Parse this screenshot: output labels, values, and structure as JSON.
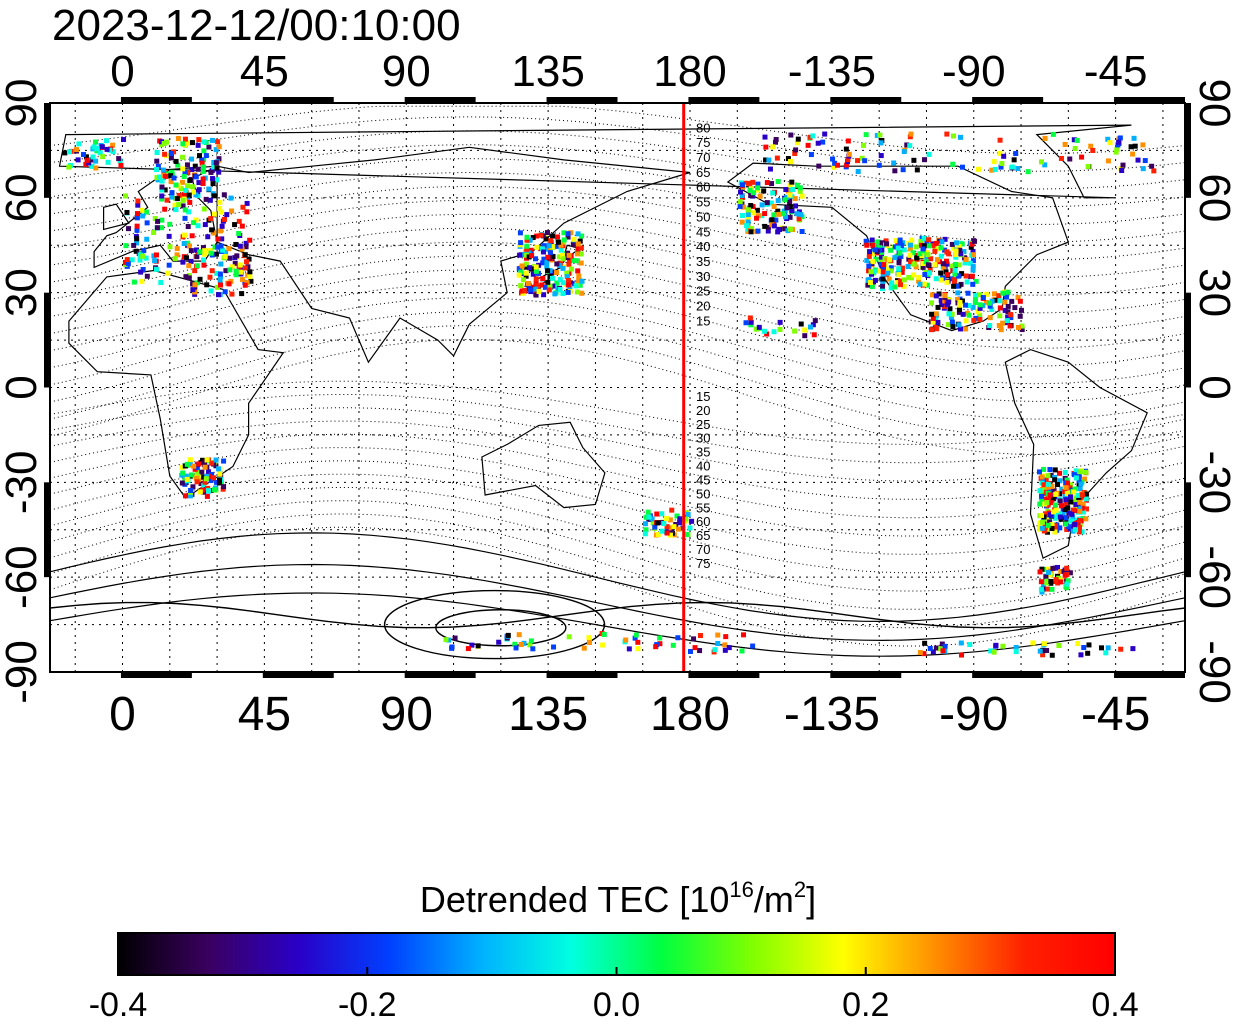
{
  "timestamp": "2023-12-12/00:10:00",
  "map": {
    "top_lon_ticks": [
      "0",
      "45",
      "90",
      "135",
      "180",
      "-135",
      "-90",
      "-45"
    ],
    "bottom_lon_ticks": [
      "0",
      "45",
      "90",
      "135",
      "180",
      "-135",
      "-90",
      "-45"
    ],
    "left_lat_ticks": [
      "90",
      "60",
      "30",
      "0",
      "-30",
      "-60",
      "-90"
    ],
    "right_lat_ticks": [
      "90",
      "60",
      "30",
      "0",
      "-30",
      "-60",
      "-90"
    ],
    "lon_tick_values": [
      0,
      45,
      90,
      135,
      180,
      225,
      270,
      315
    ],
    "lat_tick_values": [
      90,
      60,
      30,
      0,
      -30,
      -60,
      -90
    ],
    "contour_labels_north": [
      "80",
      "75",
      "70",
      "65",
      "60",
      "55",
      "50",
      "45",
      "40",
      "35",
      "30",
      "25",
      "20",
      "15"
    ],
    "contour_labels_south": [
      "15",
      "20",
      "25",
      "30",
      "35",
      "40",
      "45",
      "50",
      "55",
      "60",
      "65",
      "70",
      "75"
    ],
    "contour_label_lon": 180,
    "meridian_line": {
      "lon": 178,
      "color": "#ff0000"
    }
  },
  "colorbar": {
    "title_prefix": "Detrended TEC  [10",
    "title_exp1": "16",
    "title_mid": "/m",
    "title_exp2": "2",
    "title_suffix": "]",
    "tick_labels": [
      "-0.4",
      "-0.2",
      "0.0",
      "0.2",
      "0.4"
    ],
    "tick_values": [
      -0.4,
      -0.2,
      0.0,
      0.2,
      0.4
    ],
    "min": -0.4,
    "max": 0.4,
    "colors": [
      "#000000",
      "#3a0060",
      "#2a00c8",
      "#0040ff",
      "#00b0ff",
      "#00ffe0",
      "#00ff40",
      "#80ff00",
      "#ffff00",
      "#ff9000",
      "#ff2000",
      "#ff0000"
    ]
  }
}
